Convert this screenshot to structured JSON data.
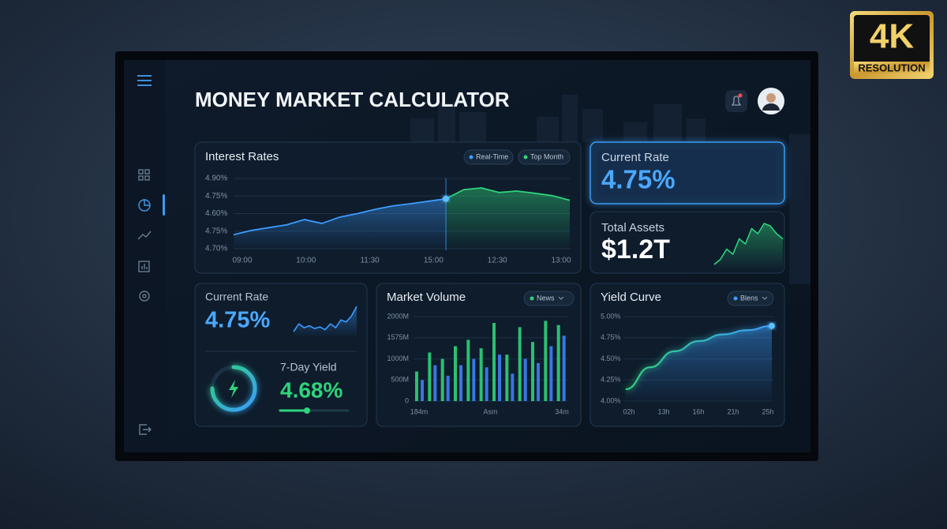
{
  "badge": {
    "main": "4K",
    "sub": "RESOLUTION"
  },
  "header": {
    "title": "MONEY MARKET CALCULATOR"
  },
  "interest_rates": {
    "type": "line",
    "title": "Interest Rates",
    "y_labels": [
      "4.90%",
      "4.75%",
      "4.60%",
      "4.75%",
      "4.70%"
    ],
    "x_labels": [
      "09:00",
      "10:00",
      "11:30",
      "15:00",
      "12:30",
      "13:00"
    ],
    "ylim": [
      4.7,
      4.9
    ],
    "series": [
      {
        "name": "Real-Time",
        "color": "#3b9cff",
        "values": [
          4.74,
          4.752,
          4.76,
          4.768,
          4.783,
          4.772,
          4.79,
          4.8,
          4.812,
          4.822,
          4.828,
          4.835,
          4.842,
          null,
          null,
          null,
          null,
          null,
          null,
          null
        ]
      },
      {
        "name": "Top Month",
        "color": "#2fd37a",
        "values": [
          null,
          null,
          null,
          null,
          null,
          null,
          null,
          null,
          null,
          null,
          null,
          null,
          4.842,
          4.868,
          4.873,
          4.86,
          4.864,
          4.858,
          4.851,
          4.838
        ]
      }
    ]
  },
  "current_rate_card": {
    "label": "Current Rate",
    "value": "4.75%"
  },
  "total_assets_card": {
    "label": "Total Assets",
    "value": "$1.2T",
    "spark": {
      "color": "#2fd37a",
      "values": [
        1,
        2,
        4,
        3,
        6,
        5,
        8,
        7,
        9,
        8.5,
        7,
        6
      ]
    }
  },
  "rate_yield_card": {
    "rate_label": "Current Rate",
    "rate_value": "4.75%",
    "spark": {
      "color": "#3b9cff",
      "values": [
        3,
        5,
        4,
        4.5,
        3.8,
        4.2,
        3.5,
        5,
        4,
        6,
        5.5,
        7,
        9.5
      ]
    },
    "yield_label": "7-Day Yield",
    "yield_value": "4.68%"
  },
  "market_volume": {
    "type": "bar",
    "title": "Market Volume",
    "filter": "News",
    "y_labels": [
      "2000M",
      "1575M",
      "1000M",
      "500M",
      "0"
    ],
    "x_labels": [
      "184m",
      "Asm",
      "34m"
    ],
    "ylim": [
      0,
      2000
    ],
    "series": [
      {
        "color": "#2fd37a",
        "values": [
          700,
          1150,
          1000,
          1300,
          1450,
          1250,
          1850,
          1100,
          1750,
          1400,
          1900,
          1800
        ]
      },
      {
        "color": "#3b82f6",
        "values": [
          500,
          850,
          600,
          850,
          1000,
          800,
          1100,
          650,
          1000,
          900,
          1300,
          1550
        ]
      }
    ]
  },
  "yield_curve": {
    "type": "line",
    "title": "Yield Curve",
    "filter": "Blens",
    "x_labels": [
      "02h",
      "13h",
      "16h",
      "21h",
      "25h"
    ],
    "ylim": [
      4.0,
      5.0
    ],
    "yticks": [
      {
        "value": 5.0,
        "label": "5.00%"
      },
      {
        "value": 4.75,
        "label": "4.75%"
      },
      {
        "value": 4.5,
        "label": "4.50%"
      },
      {
        "value": 4.25,
        "label": "4.25%"
      },
      {
        "value": 4.0,
        "label": "4.00%"
      }
    ],
    "color": "#2fd37a",
    "values": [
      4.14,
      4.4,
      4.59,
      4.71,
      4.79,
      4.84,
      4.89
    ]
  }
}
